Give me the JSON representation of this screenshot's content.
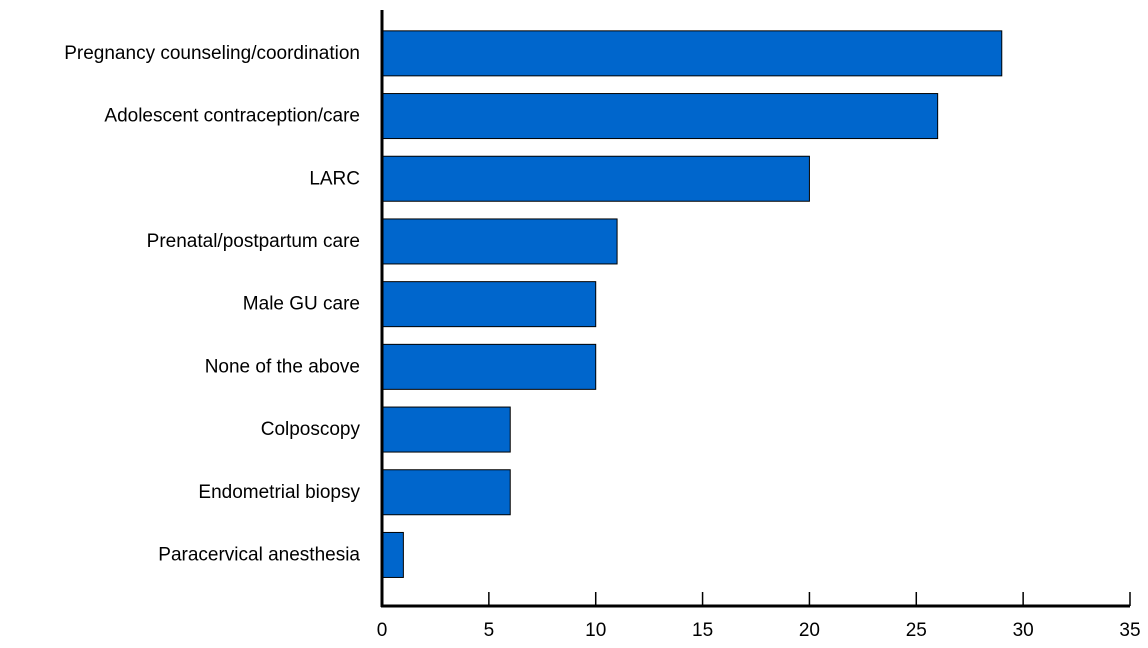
{
  "chart_data": {
    "type": "bar",
    "orientation": "horizontal",
    "categories": [
      "Pregnancy counseling/coordination",
      "Adolescent contraception/care",
      "LARC",
      "Prenatal/postpartum care",
      "Male GU care",
      "None of the above",
      "Colposcopy",
      "Endometrial biopsy",
      "Paracervical anesthesia"
    ],
    "values": [
      29,
      26,
      20,
      11,
      10,
      10,
      6,
      6,
      1
    ],
    "xlim": [
      0,
      35
    ],
    "xticks": [
      "0",
      "5",
      "10",
      "15",
      "20",
      "25",
      "30",
      "35"
    ],
    "title": "",
    "xlabel": "",
    "ylabel": "",
    "grid": false,
    "bar_color": "#0066cc"
  }
}
